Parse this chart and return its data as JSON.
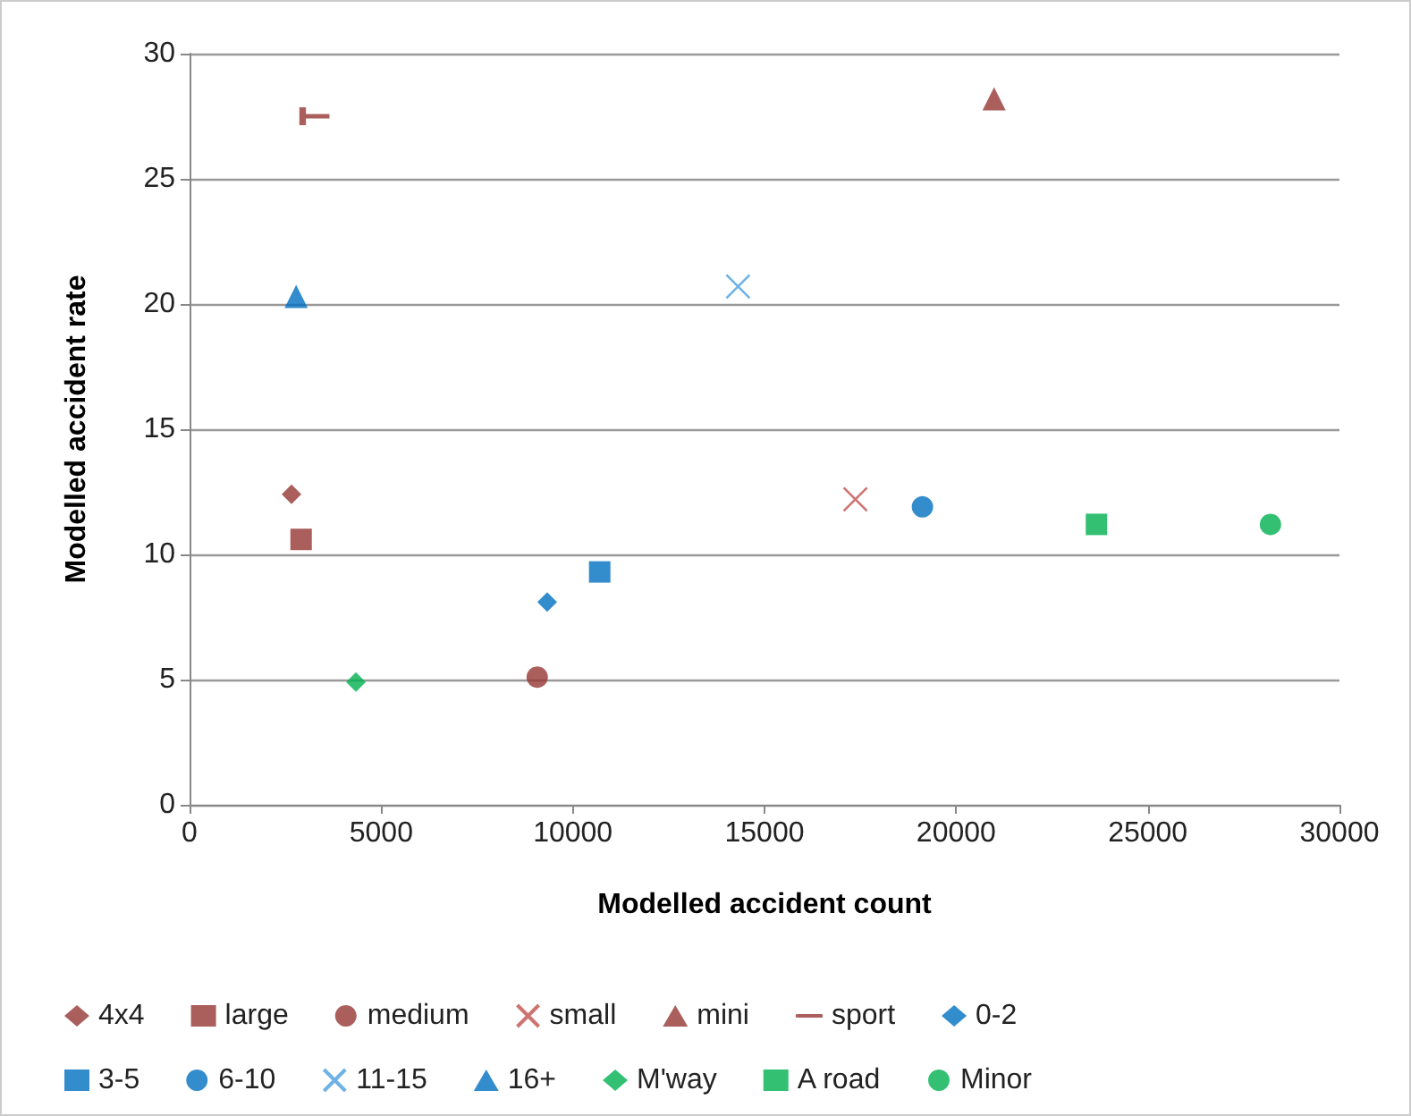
{
  "chart_data": {
    "type": "scatter",
    "xlabel": "Modelled accident count",
    "ylabel": "Modelled accident rate",
    "xlim": [
      0,
      30000
    ],
    "xticks": [
      0,
      5000,
      10000,
      15000,
      20000,
      25000,
      30000
    ],
    "ylim": [
      0,
      30
    ],
    "yticks": [
      0,
      5,
      10,
      15,
      20,
      25,
      30
    ],
    "grid": "y",
    "legend": "bottom",
    "series": [
      {
        "name": "4x4",
        "color": "#953735",
        "marker": "diamond",
        "x": [
          2660
        ],
        "values": [
          12.4
        ]
      },
      {
        "name": "large",
        "color": "#953735",
        "marker": "square",
        "x": [
          2910
        ],
        "values": [
          10.6
        ]
      },
      {
        "name": "medium",
        "color": "#953735",
        "marker": "circle",
        "x": [
          9070
        ],
        "values": [
          5.1
        ]
      },
      {
        "name": "small",
        "color": "#c0504d",
        "marker": "cross",
        "x": [
          17370
        ],
        "values": [
          12.2
        ]
      },
      {
        "name": "mini",
        "color": "#953735",
        "marker": "triangle",
        "x": [
          20990
        ],
        "values": [
          28.2
        ]
      },
      {
        "name": "sport",
        "color": "#953735",
        "x": [
          3300
        ],
        "values": [
          27.5
        ]
      },
      {
        "name": "0-2",
        "color": "#0070c0",
        "marker": "diamond",
        "x": [
          9330
        ],
        "values": [
          8.1
        ]
      },
      {
        "name": "3-5",
        "color": "#0070c0",
        "marker": "square",
        "x": [
          10700
        ],
        "values": [
          9.3
        ]
      },
      {
        "name": "6-10",
        "color": "#0070c0",
        "marker": "circle",
        "x": [
          19120
        ],
        "values": [
          11.9
        ]
      },
      {
        "name": "11-15",
        "color": "#4a9fe0",
        "marker": "cross",
        "x": [
          14310
        ],
        "values": [
          20.7
        ]
      },
      {
        "name": "16+",
        "color": "#0070c0",
        "marker": "triangle",
        "x": [
          2780
        ],
        "values": [
          20.3
        ]
      },
      {
        "name": "M'way",
        "color": "#00b050",
        "marker": "diamond",
        "x": [
          4340
        ],
        "values": [
          4.9
        ]
      },
      {
        "name": "A road",
        "color": "#00b050",
        "marker": "square",
        "x": [
          23660
        ],
        "values": [
          11.2
        ]
      },
      {
        "name": "Minor",
        "color": "#00b050",
        "marker": "circle",
        "x": [
          28200
        ],
        "values": [
          11.2
        ]
      }
    ]
  }
}
